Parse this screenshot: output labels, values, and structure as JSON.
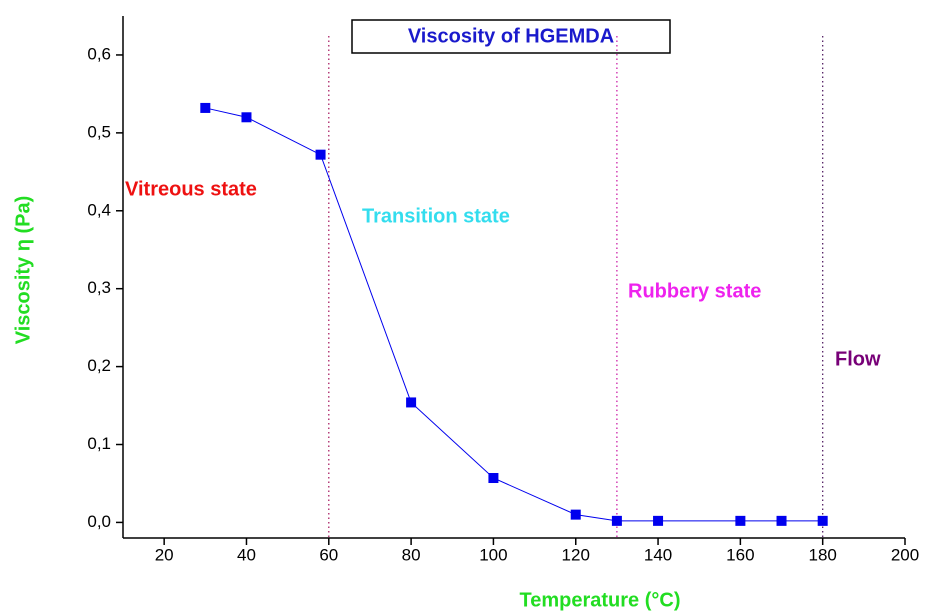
{
  "chart_data": {
    "type": "line",
    "title": "Viscosity of HGEMDA",
    "x_label": "Temperature (°C)",
    "y_label": "Viscosity η (Pa)",
    "xlim": [
      10,
      200
    ],
    "ylim": [
      -0.02,
      0.65
    ],
    "xticks": [
      20,
      40,
      60,
      80,
      100,
      120,
      140,
      160,
      180,
      200
    ],
    "yticks": [
      {
        "value": 0,
        "label": "0,0"
      },
      {
        "value": 0.1,
        "label": "0,1"
      },
      {
        "value": 0.2,
        "label": "0,2"
      },
      {
        "value": 0.3,
        "label": "0,3"
      },
      {
        "value": 0.4,
        "label": "0,4"
      },
      {
        "value": 0.5,
        "label": "0,5"
      },
      {
        "value": 0.6,
        "label": "0,6"
      }
    ],
    "series": [
      {
        "name": "Viscosity",
        "color": "#0000ee",
        "x": [
          30,
          40,
          58,
          80,
          100,
          120,
          130,
          140,
          160,
          170,
          180
        ],
        "values": [
          0.532,
          0.52,
          0.472,
          0.154,
          0.057,
          0.01,
          0.002,
          0.002,
          0.002,
          0.002,
          0.002
        ]
      }
    ],
    "vlines": [
      {
        "x": 60,
        "color": "#aa2266"
      },
      {
        "x": 130,
        "color": "#cc22aa"
      },
      {
        "x": 180,
        "color": "#552266"
      }
    ],
    "annotations": [
      {
        "text": "Vitreous state",
        "color": "#ee1111"
      },
      {
        "text": "Transition state",
        "color": "#33ddee"
      },
      {
        "text": "Rubbery state",
        "color": "#ee22ee"
      },
      {
        "text": "Flow",
        "color": "#770077"
      }
    ]
  }
}
